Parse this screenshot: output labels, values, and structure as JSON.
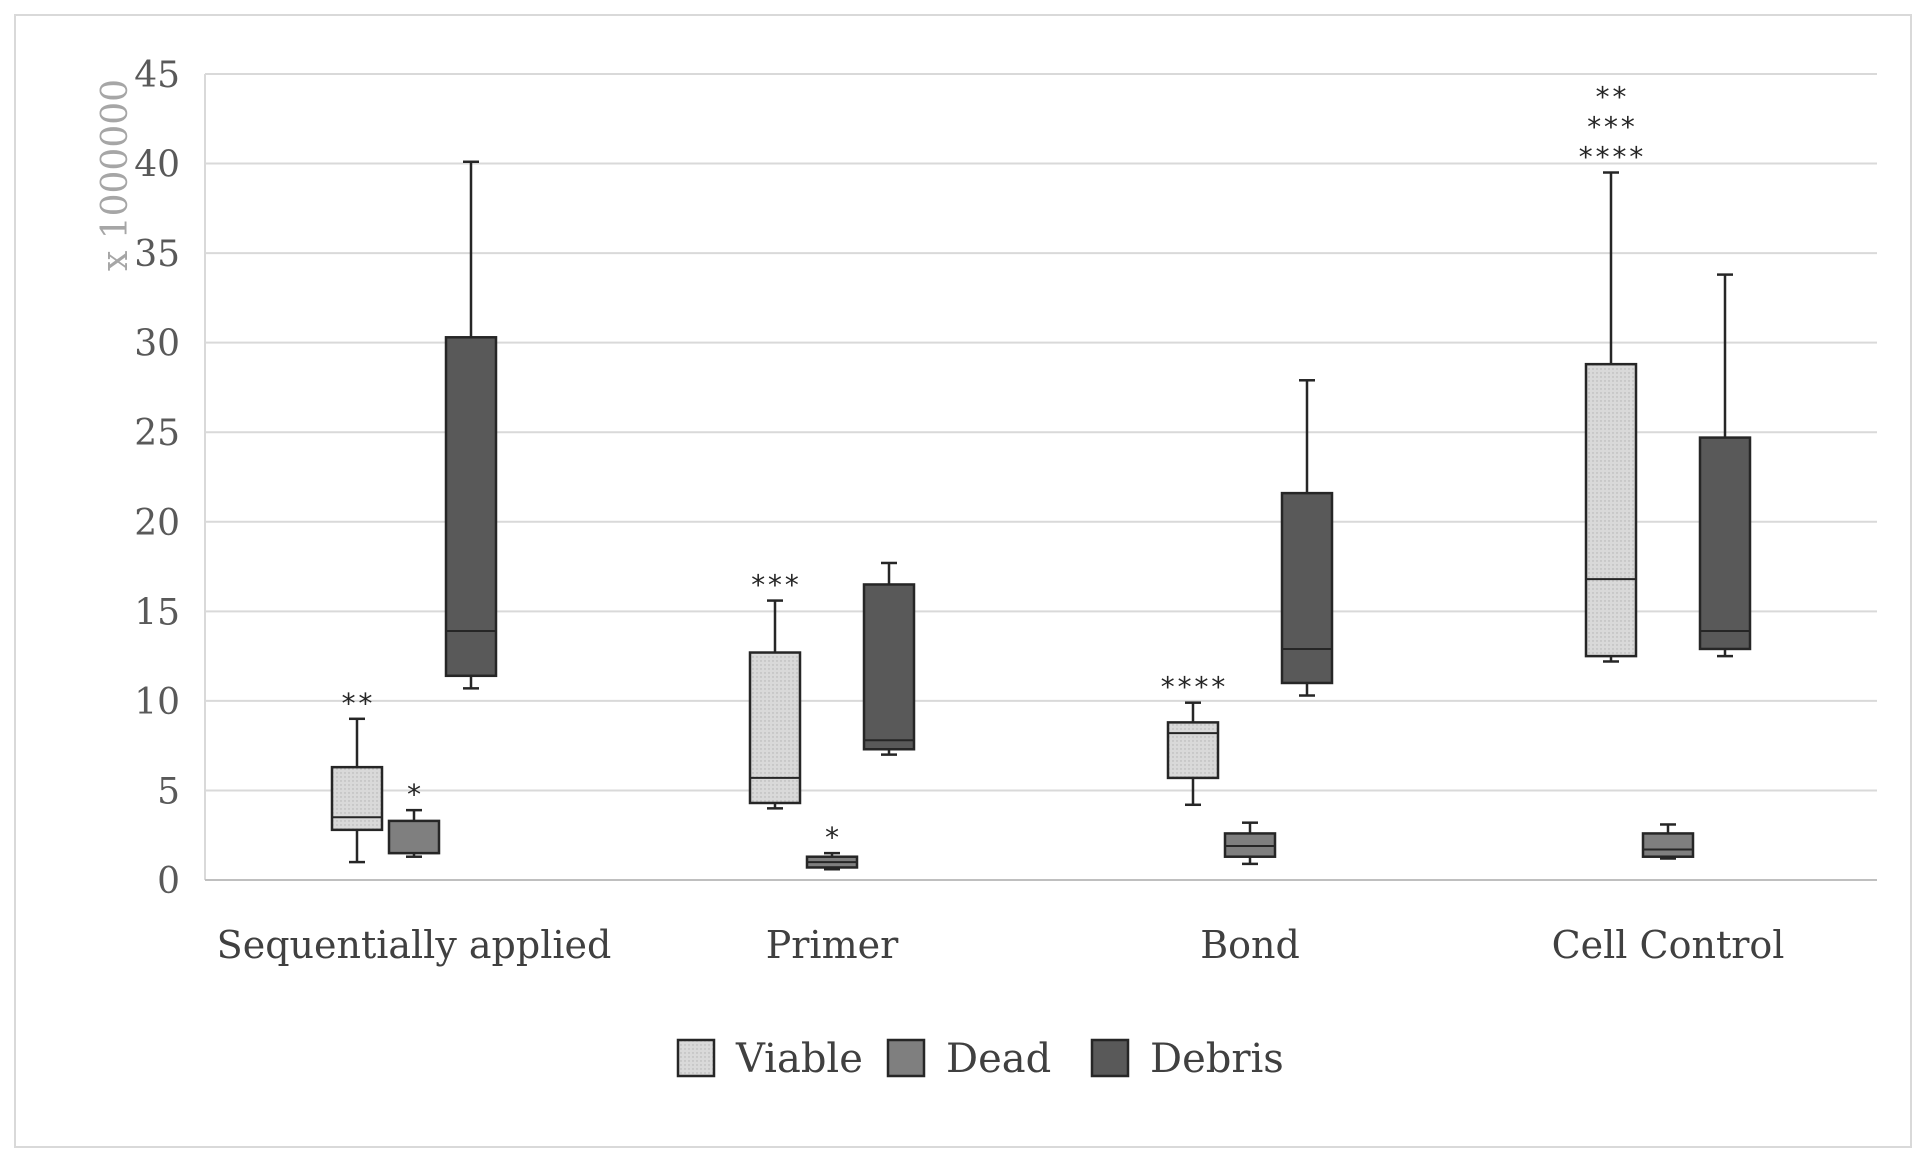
{
  "chart_data": {
    "type": "boxplot",
    "title": "",
    "xlabel": "",
    "ylabel": "x 1000000",
    "ylim": [
      0,
      45
    ],
    "yticks": [
      0,
      5,
      10,
      15,
      20,
      25,
      30,
      35,
      40,
      45
    ],
    "ytick_labels": [
      "0",
      "5",
      "10",
      "15",
      "20",
      "25",
      "30",
      "35",
      "40",
      "45"
    ],
    "grid": true,
    "legend_position": "bottom",
    "categories": [
      "Sequentially applied",
      "Primer",
      "Bond",
      "Cell Control"
    ],
    "series": [
      {
        "name": "Viable",
        "color": "#d9d9d9",
        "pattern": "dotted",
        "boxes": [
          {
            "min": 1.0,
            "q1": 2.8,
            "median": 3.5,
            "q3": 6.3,
            "max": 9.0
          },
          {
            "min": 4.0,
            "q1": 4.3,
            "median": 5.7,
            "q3": 12.7,
            "max": 15.6
          },
          {
            "min": 4.2,
            "q1": 5.7,
            "median": 8.2,
            "q3": 8.8,
            "max": 9.9
          },
          {
            "min": 12.2,
            "q1": 12.5,
            "median": 16.8,
            "q3": 28.8,
            "max": 39.5
          }
        ]
      },
      {
        "name": "Dead",
        "color": "#7f7f7f",
        "pattern": "none",
        "boxes": [
          {
            "min": 1.3,
            "q1": 1.5,
            "median": 1.5,
            "q3": 3.3,
            "max": 3.9
          },
          {
            "min": 0.6,
            "q1": 0.7,
            "median": 1.0,
            "q3": 1.3,
            "max": 1.5
          },
          {
            "min": 0.9,
            "q1": 1.3,
            "median": 1.9,
            "q3": 2.6,
            "max": 3.2
          },
          {
            "min": 1.2,
            "q1": 1.3,
            "median": 1.7,
            "q3": 2.6,
            "max": 3.1
          }
        ]
      },
      {
        "name": "Debris",
        "color": "#595959",
        "pattern": "none",
        "boxes": [
          {
            "min": 10.7,
            "q1": 11.4,
            "median": 13.9,
            "q3": 30.3,
            "max": 40.1
          },
          {
            "min": 7.0,
            "q1": 7.3,
            "median": 7.8,
            "q3": 16.5,
            "max": 17.7
          },
          {
            "min": 10.3,
            "q1": 11.0,
            "median": 12.9,
            "q3": 21.6,
            "max": 27.9
          },
          {
            "min": 12.5,
            "q1": 12.9,
            "median": 13.9,
            "q3": 24.7,
            "max": 33.8
          }
        ]
      }
    ],
    "annotations": [
      {
        "category": 0,
        "series": 0,
        "lines": [
          "**"
        ]
      },
      {
        "category": 0,
        "series": 1,
        "lines": [
          "*"
        ]
      },
      {
        "category": 1,
        "series": 0,
        "lines": [
          "***"
        ]
      },
      {
        "category": 1,
        "series": 1,
        "lines": [
          "*"
        ]
      },
      {
        "category": 2,
        "series": 0,
        "lines": [
          "****"
        ]
      },
      {
        "category": 3,
        "series": 0,
        "lines": [
          "**",
          "***",
          "****"
        ]
      }
    ]
  }
}
